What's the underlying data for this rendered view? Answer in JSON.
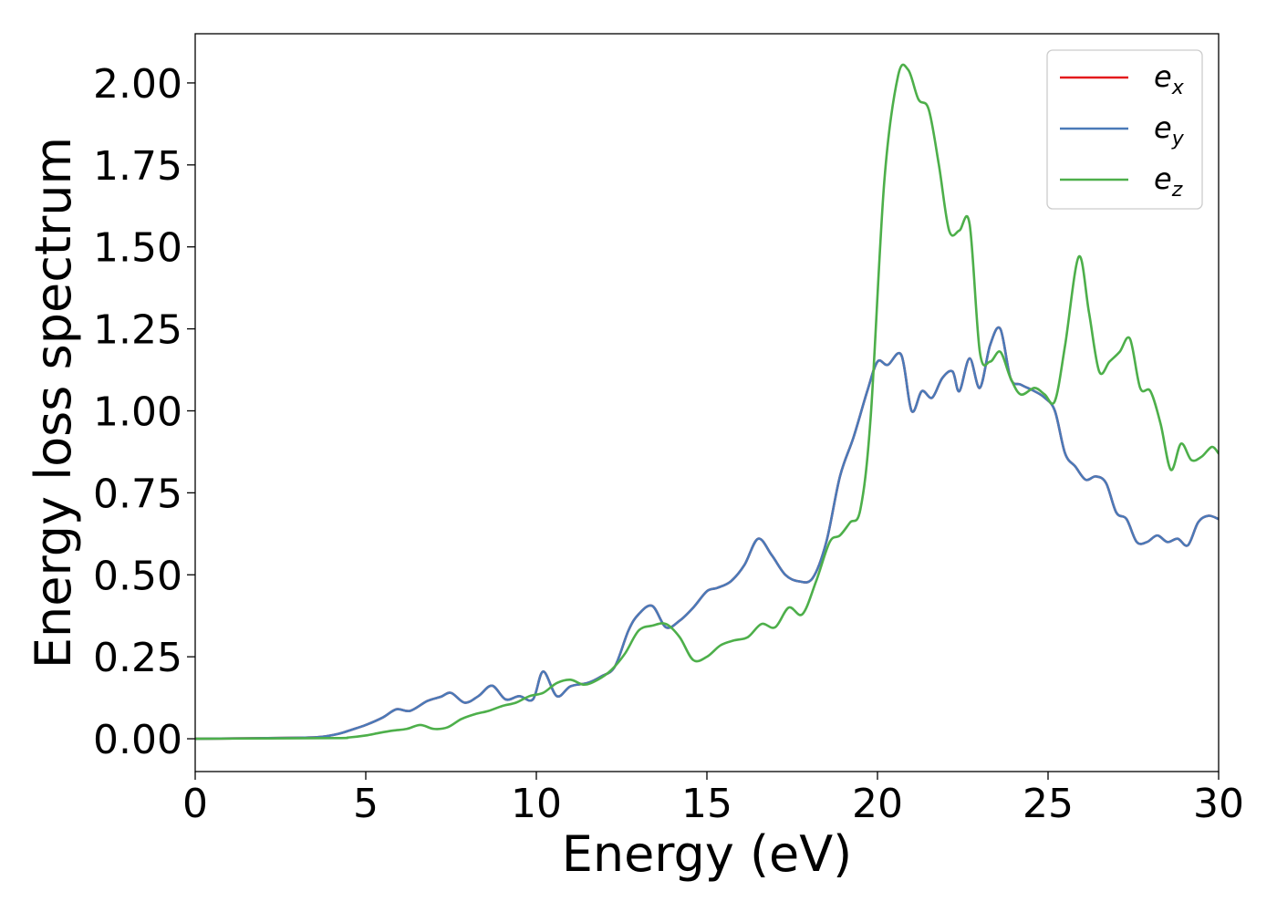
{
  "chart_data": {
    "type": "line",
    "xlabel": "Energy (eV)",
    "ylabel": "Energy loss spectrum",
    "xlim": [
      0,
      30
    ],
    "ylim": [
      -0.1,
      2.15
    ],
    "xticks": [
      0,
      5,
      10,
      15,
      20,
      25,
      30
    ],
    "xtick_labels": [
      "0",
      "5",
      "10",
      "15",
      "20",
      "25",
      "30"
    ],
    "yticks": [
      0.0,
      0.25,
      0.5,
      0.75,
      1.0,
      1.25,
      1.5,
      1.75,
      2.0
    ],
    "ytick_labels": [
      "0.00",
      "0.25",
      "0.50",
      "0.75",
      "1.00",
      "1.25",
      "1.50",
      "1.75",
      "2.00"
    ],
    "grid": false,
    "legend_position": "top-right",
    "series": [
      {
        "name_base": "e",
        "name_sub": "x",
        "color": "#e41a1c",
        "x": [
          0,
          3,
          3.7,
          4.2,
          4.6,
          5.0,
          5.5,
          5.9,
          6.3,
          6.8,
          7.2,
          7.5,
          7.9,
          8.3,
          8.7,
          9.1,
          9.5,
          9.9,
          10.2,
          10.6,
          11.0,
          11.5,
          11.9,
          12.3,
          12.7,
          13.0,
          13.4,
          13.8,
          14.2,
          14.6,
          15.0,
          15.3,
          15.7,
          16.1,
          16.5,
          16.9,
          17.3,
          17.7,
          18.1,
          18.5,
          18.9,
          19.3,
          19.7,
          20.0,
          20.3,
          20.7,
          21.0,
          21.3,
          21.6,
          21.9,
          22.2,
          22.4,
          22.7,
          23.0,
          23.3,
          23.6,
          23.9,
          24.2,
          24.6,
          24.9,
          25.2,
          25.5,
          25.8,
          26.1,
          26.4,
          26.7,
          27.0,
          27.3,
          27.6,
          27.9,
          28.2,
          28.5,
          28.8,
          29.1,
          29.4,
          29.7,
          30.0
        ],
        "y": [
          0.0,
          0.003,
          0.006,
          0.015,
          0.028,
          0.042,
          0.065,
          0.09,
          0.085,
          0.115,
          0.128,
          0.14,
          0.11,
          0.13,
          0.162,
          0.12,
          0.13,
          0.12,
          0.205,
          0.13,
          0.16,
          0.17,
          0.19,
          0.22,
          0.33,
          0.38,
          0.405,
          0.34,
          0.36,
          0.4,
          0.45,
          0.46,
          0.48,
          0.53,
          0.61,
          0.56,
          0.5,
          0.48,
          0.49,
          0.6,
          0.8,
          0.92,
          1.06,
          1.15,
          1.14,
          1.17,
          1.0,
          1.06,
          1.04,
          1.1,
          1.12,
          1.06,
          1.16,
          1.07,
          1.2,
          1.25,
          1.1,
          1.08,
          1.06,
          1.04,
          1.0,
          0.87,
          0.83,
          0.79,
          0.8,
          0.78,
          0.69,
          0.67,
          0.6,
          0.6,
          0.62,
          0.6,
          0.61,
          0.59,
          0.66,
          0.68,
          0.67
        ]
      },
      {
        "name_base": "e",
        "name_sub": "y",
        "color": "#4a7ab8",
        "x": [
          0,
          3,
          3.7,
          4.2,
          4.6,
          5.0,
          5.5,
          5.9,
          6.3,
          6.8,
          7.2,
          7.5,
          7.9,
          8.3,
          8.7,
          9.1,
          9.5,
          9.9,
          10.2,
          10.6,
          11.0,
          11.5,
          11.9,
          12.3,
          12.7,
          13.0,
          13.4,
          13.8,
          14.2,
          14.6,
          15.0,
          15.3,
          15.7,
          16.1,
          16.5,
          16.9,
          17.3,
          17.7,
          18.1,
          18.5,
          18.9,
          19.3,
          19.7,
          20.0,
          20.3,
          20.7,
          21.0,
          21.3,
          21.6,
          21.9,
          22.2,
          22.4,
          22.7,
          23.0,
          23.3,
          23.6,
          23.9,
          24.2,
          24.6,
          24.9,
          25.2,
          25.5,
          25.8,
          26.1,
          26.4,
          26.7,
          27.0,
          27.3,
          27.6,
          27.9,
          28.2,
          28.5,
          28.8,
          29.1,
          29.4,
          29.7,
          30.0
        ],
        "y": [
          0.0,
          0.003,
          0.006,
          0.015,
          0.028,
          0.042,
          0.065,
          0.09,
          0.085,
          0.115,
          0.128,
          0.14,
          0.11,
          0.13,
          0.162,
          0.12,
          0.13,
          0.12,
          0.205,
          0.13,
          0.16,
          0.17,
          0.19,
          0.22,
          0.33,
          0.38,
          0.405,
          0.34,
          0.36,
          0.4,
          0.45,
          0.46,
          0.48,
          0.53,
          0.61,
          0.56,
          0.5,
          0.48,
          0.49,
          0.6,
          0.8,
          0.92,
          1.06,
          1.15,
          1.14,
          1.17,
          1.0,
          1.06,
          1.04,
          1.1,
          1.12,
          1.06,
          1.16,
          1.07,
          1.2,
          1.25,
          1.1,
          1.08,
          1.06,
          1.04,
          1.0,
          0.87,
          0.83,
          0.79,
          0.8,
          0.78,
          0.69,
          0.67,
          0.6,
          0.6,
          0.62,
          0.6,
          0.61,
          0.59,
          0.66,
          0.68,
          0.67
        ]
      },
      {
        "name_base": "e",
        "name_sub": "z",
        "color": "#4daf4a",
        "x": [
          0,
          4,
          4.5,
          5.0,
          5.4,
          5.8,
          6.2,
          6.6,
          7.0,
          7.4,
          7.8,
          8.2,
          8.6,
          9.0,
          9.4,
          9.8,
          10.2,
          10.6,
          11.0,
          11.4,
          11.8,
          12.2,
          12.6,
          13.0,
          13.4,
          13.8,
          14.2,
          14.6,
          15.0,
          15.4,
          15.8,
          16.2,
          16.6,
          17.0,
          17.4,
          17.8,
          18.2,
          18.6,
          18.9,
          19.2,
          19.5,
          19.8,
          20.2,
          20.6,
          20.9,
          21.2,
          21.5,
          21.8,
          22.1,
          22.4,
          22.7,
          23.0,
          23.3,
          23.6,
          23.9,
          24.2,
          24.6,
          24.9,
          25.2,
          25.5,
          25.9,
          26.2,
          26.5,
          26.8,
          27.1,
          27.4,
          27.7,
          28.0,
          28.3,
          28.6,
          28.9,
          29.2,
          29.5,
          29.8,
          30.0
        ],
        "y": [
          0.0,
          0.002,
          0.004,
          0.01,
          0.018,
          0.025,
          0.03,
          0.042,
          0.03,
          0.035,
          0.06,
          0.075,
          0.085,
          0.1,
          0.11,
          0.13,
          0.14,
          0.17,
          0.18,
          0.165,
          0.18,
          0.21,
          0.26,
          0.33,
          0.345,
          0.35,
          0.31,
          0.24,
          0.25,
          0.285,
          0.3,
          0.31,
          0.35,
          0.34,
          0.4,
          0.38,
          0.48,
          0.6,
          0.62,
          0.66,
          0.7,
          0.98,
          1.7,
          2.02,
          2.04,
          1.95,
          1.92,
          1.75,
          1.55,
          1.55,
          1.57,
          1.18,
          1.15,
          1.18,
          1.1,
          1.05,
          1.07,
          1.05,
          1.03,
          1.2,
          1.47,
          1.3,
          1.12,
          1.15,
          1.18,
          1.22,
          1.07,
          1.06,
          0.96,
          0.82,
          0.9,
          0.85,
          0.86,
          0.89,
          0.87
        ]
      }
    ]
  }
}
